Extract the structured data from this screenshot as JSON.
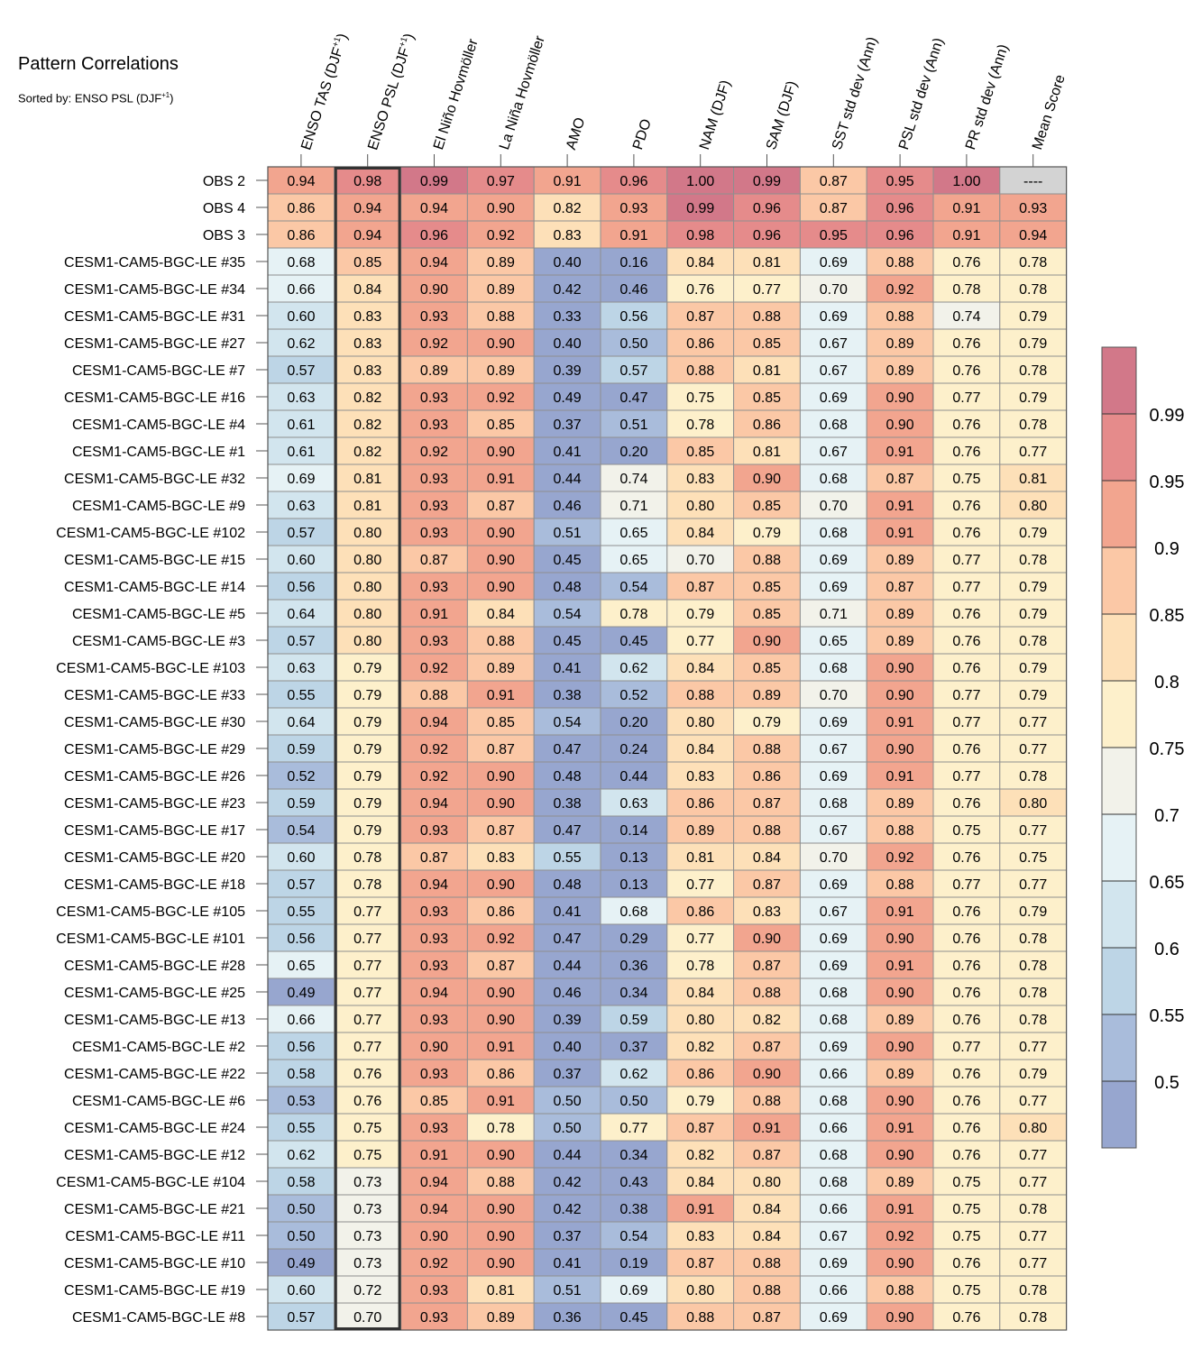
{
  "chart_data": {
    "type": "heatmap",
    "title": "Pattern Correlations",
    "subtitle": "Sorted by: ENSO PSL (DJF+1)",
    "columns": [
      "ENSO TAS (DJF+1)",
      "ENSO PSL (DJF+1)",
      "El Niño Hovmöller",
      "La Niña Hovmöller",
      "AMO",
      "PDO",
      "NAM (DJF)",
      "SAM (DJF)",
      "SST std dev (Ann)",
      "PSL std dev (Ann)",
      "PR std dev (Ann)",
      "Mean Score"
    ],
    "highlighted_column": "ENSO PSL (DJF+1)",
    "rows": [
      "OBS 2",
      "OBS 4",
      "OBS 3",
      "CESM1-CAM5-BGC-LE #35",
      "CESM1-CAM5-BGC-LE #34",
      "CESM1-CAM5-BGC-LE #31",
      "CESM1-CAM5-BGC-LE #27",
      "CESM1-CAM5-BGC-LE #7",
      "CESM1-CAM5-BGC-LE #16",
      "CESM1-CAM5-BGC-LE #4",
      "CESM1-CAM5-BGC-LE #1",
      "CESM1-CAM5-BGC-LE #32",
      "CESM1-CAM5-BGC-LE #9",
      "CESM1-CAM5-BGC-LE #102",
      "CESM1-CAM5-BGC-LE #15",
      "CESM1-CAM5-BGC-LE #14",
      "CESM1-CAM5-BGC-LE #5",
      "CESM1-CAM5-BGC-LE #3",
      "CESM1-CAM5-BGC-LE #103",
      "CESM1-CAM5-BGC-LE #33",
      "CESM1-CAM5-BGC-LE #30",
      "CESM1-CAM5-BGC-LE #29",
      "CESM1-CAM5-BGC-LE #26",
      "CESM1-CAM5-BGC-LE #23",
      "CESM1-CAM5-BGC-LE #17",
      "CESM1-CAM5-BGC-LE #20",
      "CESM1-CAM5-BGC-LE #18",
      "CESM1-CAM5-BGC-LE #105",
      "CESM1-CAM5-BGC-LE #101",
      "CESM1-CAM5-BGC-LE #28",
      "CESM1-CAM5-BGC-LE #25",
      "CESM1-CAM5-BGC-LE #13",
      "CESM1-CAM5-BGC-LE #2",
      "CESM1-CAM5-BGC-LE #22",
      "CESM1-CAM5-BGC-LE #6",
      "CESM1-CAM5-BGC-LE #24",
      "CESM1-CAM5-BGC-LE #12",
      "CESM1-CAM5-BGC-LE #104",
      "CESM1-CAM5-BGC-LE #21",
      "CESM1-CAM5-BGC-LE #11",
      "CESM1-CAM5-BGC-LE #10",
      "CESM1-CAM5-BGC-LE #19",
      "CESM1-CAM5-BGC-LE #8"
    ],
    "values": [
      [
        "0.94",
        "0.98",
        "0.99",
        "0.97",
        "0.91",
        "0.96",
        "1.00",
        "0.99",
        "0.87",
        "0.95",
        "1.00",
        "----"
      ],
      [
        "0.86",
        "0.94",
        "0.94",
        "0.90",
        "0.82",
        "0.93",
        "0.99",
        "0.96",
        "0.87",
        "0.96",
        "0.91",
        "0.93"
      ],
      [
        "0.86",
        "0.94",
        "0.96",
        "0.92",
        "0.83",
        "0.91",
        "0.98",
        "0.96",
        "0.95",
        "0.96",
        "0.91",
        "0.94"
      ],
      [
        "0.68",
        "0.85",
        "0.94",
        "0.89",
        "0.40",
        "0.16",
        "0.84",
        "0.81",
        "0.69",
        "0.88",
        "0.76",
        "0.78"
      ],
      [
        "0.66",
        "0.84",
        "0.90",
        "0.89",
        "0.42",
        "0.46",
        "0.76",
        "0.77",
        "0.70",
        "0.92",
        "0.78",
        "0.78"
      ],
      [
        "0.60",
        "0.83",
        "0.93",
        "0.88",
        "0.33",
        "0.56",
        "0.87",
        "0.88",
        "0.69",
        "0.88",
        "0.74",
        "0.79"
      ],
      [
        "0.62",
        "0.83",
        "0.92",
        "0.90",
        "0.40",
        "0.50",
        "0.86",
        "0.85",
        "0.67",
        "0.89",
        "0.76",
        "0.79"
      ],
      [
        "0.57",
        "0.83",
        "0.89",
        "0.89",
        "0.39",
        "0.57",
        "0.88",
        "0.81",
        "0.67",
        "0.89",
        "0.76",
        "0.78"
      ],
      [
        "0.63",
        "0.82",
        "0.93",
        "0.92",
        "0.49",
        "0.47",
        "0.75",
        "0.85",
        "0.69",
        "0.90",
        "0.77",
        "0.79"
      ],
      [
        "0.61",
        "0.82",
        "0.93",
        "0.85",
        "0.37",
        "0.51",
        "0.78",
        "0.86",
        "0.68",
        "0.90",
        "0.76",
        "0.78"
      ],
      [
        "0.61",
        "0.82",
        "0.92",
        "0.90",
        "0.41",
        "0.20",
        "0.85",
        "0.81",
        "0.67",
        "0.91",
        "0.76",
        "0.77"
      ],
      [
        "0.69",
        "0.81",
        "0.93",
        "0.91",
        "0.44",
        "0.74",
        "0.83",
        "0.90",
        "0.68",
        "0.87",
        "0.75",
        "0.81"
      ],
      [
        "0.63",
        "0.81",
        "0.93",
        "0.87",
        "0.46",
        "0.71",
        "0.80",
        "0.85",
        "0.70",
        "0.91",
        "0.76",
        "0.80"
      ],
      [
        "0.57",
        "0.80",
        "0.93",
        "0.90",
        "0.51",
        "0.65",
        "0.84",
        "0.79",
        "0.68",
        "0.91",
        "0.76",
        "0.79"
      ],
      [
        "0.60",
        "0.80",
        "0.87",
        "0.90",
        "0.45",
        "0.65",
        "0.70",
        "0.88",
        "0.69",
        "0.89",
        "0.77",
        "0.78"
      ],
      [
        "0.56",
        "0.80",
        "0.93",
        "0.90",
        "0.48",
        "0.54",
        "0.87",
        "0.85",
        "0.69",
        "0.87",
        "0.77",
        "0.79"
      ],
      [
        "0.64",
        "0.80",
        "0.91",
        "0.84",
        "0.54",
        "0.78",
        "0.79",
        "0.85",
        "0.71",
        "0.89",
        "0.76",
        "0.79"
      ],
      [
        "0.57",
        "0.80",
        "0.93",
        "0.88",
        "0.45",
        "0.45",
        "0.77",
        "0.90",
        "0.65",
        "0.89",
        "0.76",
        "0.78"
      ],
      [
        "0.63",
        "0.79",
        "0.92",
        "0.89",
        "0.41",
        "0.62",
        "0.84",
        "0.85",
        "0.68",
        "0.90",
        "0.76",
        "0.79"
      ],
      [
        "0.55",
        "0.79",
        "0.88",
        "0.91",
        "0.38",
        "0.52",
        "0.88",
        "0.89",
        "0.70",
        "0.90",
        "0.77",
        "0.79"
      ],
      [
        "0.64",
        "0.79",
        "0.94",
        "0.85",
        "0.54",
        "0.20",
        "0.80",
        "0.79",
        "0.69",
        "0.91",
        "0.77",
        "0.77"
      ],
      [
        "0.59",
        "0.79",
        "0.92",
        "0.87",
        "0.47",
        "0.24",
        "0.84",
        "0.88",
        "0.67",
        "0.90",
        "0.76",
        "0.77"
      ],
      [
        "0.52",
        "0.79",
        "0.92",
        "0.90",
        "0.48",
        "0.44",
        "0.83",
        "0.86",
        "0.69",
        "0.91",
        "0.77",
        "0.78"
      ],
      [
        "0.59",
        "0.79",
        "0.94",
        "0.90",
        "0.38",
        "0.63",
        "0.86",
        "0.87",
        "0.68",
        "0.89",
        "0.76",
        "0.80"
      ],
      [
        "0.54",
        "0.79",
        "0.93",
        "0.87",
        "0.47",
        "0.14",
        "0.89",
        "0.88",
        "0.67",
        "0.88",
        "0.75",
        "0.77"
      ],
      [
        "0.60",
        "0.78",
        "0.87",
        "0.83",
        "0.55",
        "0.13",
        "0.81",
        "0.84",
        "0.70",
        "0.92",
        "0.76",
        "0.75"
      ],
      [
        "0.57",
        "0.78",
        "0.94",
        "0.90",
        "0.48",
        "0.13",
        "0.77",
        "0.87",
        "0.69",
        "0.88",
        "0.77",
        "0.77"
      ],
      [
        "0.55",
        "0.77",
        "0.93",
        "0.86",
        "0.41",
        "0.68",
        "0.86",
        "0.83",
        "0.67",
        "0.91",
        "0.76",
        "0.79"
      ],
      [
        "0.56",
        "0.77",
        "0.93",
        "0.92",
        "0.47",
        "0.29",
        "0.77",
        "0.90",
        "0.69",
        "0.90",
        "0.76",
        "0.78"
      ],
      [
        "0.65",
        "0.77",
        "0.93",
        "0.87",
        "0.44",
        "0.36",
        "0.78",
        "0.87",
        "0.69",
        "0.91",
        "0.76",
        "0.78"
      ],
      [
        "0.49",
        "0.77",
        "0.94",
        "0.90",
        "0.46",
        "0.34",
        "0.84",
        "0.88",
        "0.68",
        "0.90",
        "0.76",
        "0.78"
      ],
      [
        "0.66",
        "0.77",
        "0.93",
        "0.90",
        "0.39",
        "0.59",
        "0.80",
        "0.82",
        "0.68",
        "0.89",
        "0.76",
        "0.78"
      ],
      [
        "0.56",
        "0.77",
        "0.90",
        "0.91",
        "0.40",
        "0.37",
        "0.82",
        "0.87",
        "0.69",
        "0.90",
        "0.77",
        "0.77"
      ],
      [
        "0.58",
        "0.76",
        "0.93",
        "0.86",
        "0.37",
        "0.62",
        "0.86",
        "0.90",
        "0.66",
        "0.89",
        "0.76",
        "0.79"
      ],
      [
        "0.53",
        "0.76",
        "0.85",
        "0.91",
        "0.50",
        "0.50",
        "0.79",
        "0.88",
        "0.68",
        "0.90",
        "0.76",
        "0.77"
      ],
      [
        "0.55",
        "0.75",
        "0.93",
        "0.78",
        "0.50",
        "0.77",
        "0.87",
        "0.91",
        "0.66",
        "0.91",
        "0.76",
        "0.80"
      ],
      [
        "0.62",
        "0.75",
        "0.91",
        "0.90",
        "0.44",
        "0.34",
        "0.82",
        "0.87",
        "0.68",
        "0.90",
        "0.76",
        "0.77"
      ],
      [
        "0.58",
        "0.73",
        "0.94",
        "0.88",
        "0.42",
        "0.43",
        "0.84",
        "0.80",
        "0.68",
        "0.89",
        "0.75",
        "0.77"
      ],
      [
        "0.50",
        "0.73",
        "0.94",
        "0.90",
        "0.42",
        "0.38",
        "0.91",
        "0.84",
        "0.66",
        "0.91",
        "0.75",
        "0.78"
      ],
      [
        "0.50",
        "0.73",
        "0.90",
        "0.90",
        "0.37",
        "0.54",
        "0.83",
        "0.84",
        "0.67",
        "0.92",
        "0.75",
        "0.77"
      ],
      [
        "0.49",
        "0.73",
        "0.92",
        "0.90",
        "0.41",
        "0.19",
        "0.87",
        "0.88",
        "0.69",
        "0.90",
        "0.76",
        "0.77"
      ],
      [
        "0.60",
        "0.72",
        "0.93",
        "0.81",
        "0.51",
        "0.69",
        "0.80",
        "0.88",
        "0.66",
        "0.88",
        "0.75",
        "0.78"
      ],
      [
        "0.57",
        "0.70",
        "0.93",
        "0.89",
        "0.36",
        "0.45",
        "0.88",
        "0.87",
        "0.69",
        "0.90",
        "0.76",
        "0.78"
      ]
    ],
    "colorbar": {
      "tick_labels": [
        "0.5",
        "0.55",
        "0.6",
        "0.65",
        "0.7",
        "0.75",
        "0.8",
        "0.85",
        "0.9",
        "0.95",
        "0.99"
      ],
      "bin_edges": [
        0.5,
        0.55,
        0.6,
        0.65,
        0.7,
        0.75,
        0.8,
        0.85,
        0.9,
        0.95,
        0.99
      ],
      "colors": [
        "#97a6cf",
        "#a9bcdb",
        "#bdd5e6",
        "#d2e5ee",
        "#e6f2f5",
        "#f2f2ea",
        "#fdf0cb",
        "#fde0b8",
        "#fbc8a6",
        "#f2a58f",
        "#e58b8b",
        "#d27889"
      ],
      "missing_color": "#d3d3d3"
    }
  }
}
